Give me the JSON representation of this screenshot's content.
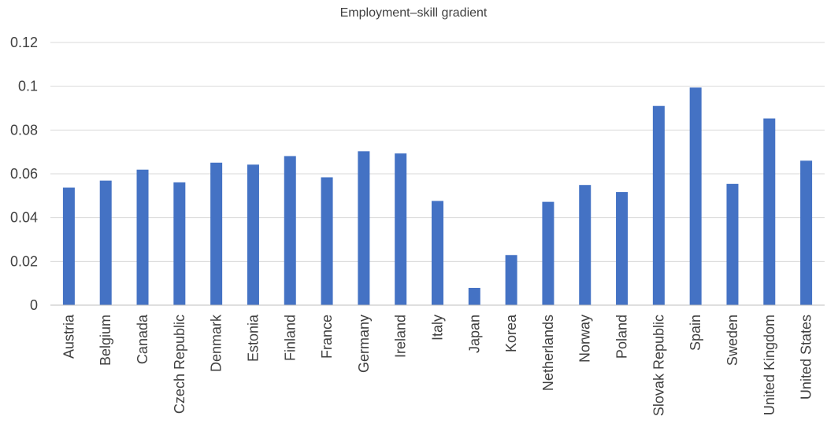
{
  "chart_data": {
    "type": "bar",
    "title": "Employment–skill gradient",
    "xlabel": "",
    "ylabel": "",
    "categories": [
      "Austria",
      "Belgium",
      "Canada",
      "Czech Republic",
      "Denmark",
      "Estonia",
      "Finland",
      "France",
      "Germany",
      "Ireland",
      "Italy",
      "Japan",
      "Korea",
      "Netherlands",
      "Norway",
      "Poland",
      "Slovak Republic",
      "Spain",
      "Sweden",
      "United Kingdom",
      "United States"
    ],
    "values": [
      0.0537,
      0.0569,
      0.0619,
      0.0561,
      0.0651,
      0.0642,
      0.0681,
      0.0584,
      0.0703,
      0.0693,
      0.0476,
      0.0079,
      0.0229,
      0.0472,
      0.0549,
      0.0517,
      0.091,
      0.0994,
      0.0554,
      0.0853,
      0.066
    ],
    "ylim": [
      0,
      0.12
    ],
    "yticks": [
      "0",
      "0.02",
      "0.04",
      "0.06",
      "0.08",
      "0.1",
      "0.12"
    ],
    "grid": true,
    "legend": "none",
    "bar_color": "#4472c4"
  }
}
